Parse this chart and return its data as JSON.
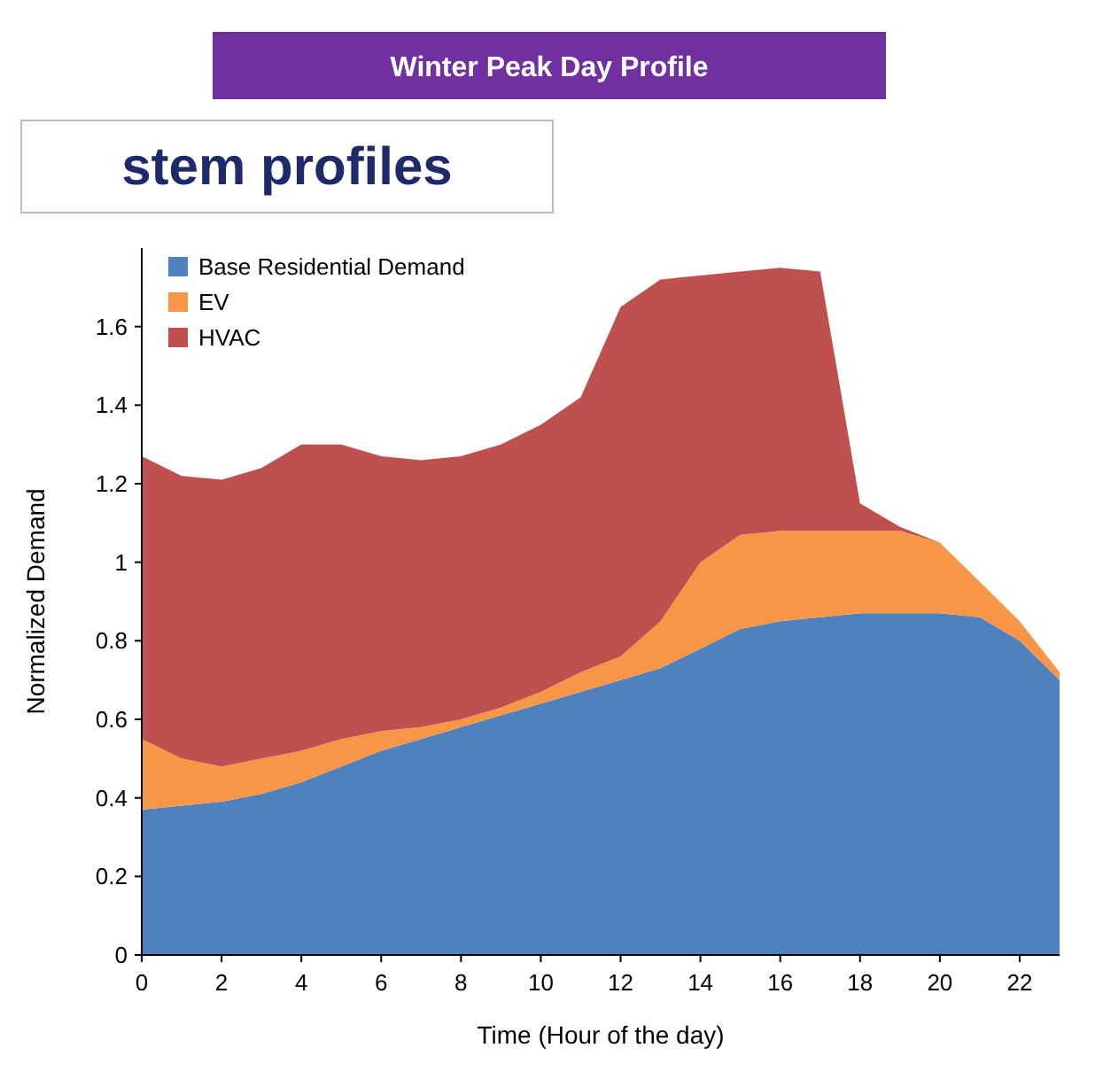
{
  "chart_data": {
    "type": "area",
    "stacked": true,
    "title": "Winter Peak Day Profile",
    "xlabel": "Time (Hour of the day)",
    "ylabel": "Normalized Demand",
    "annotations": [
      "stem profiles"
    ],
    "x": [
      0,
      1,
      2,
      3,
      4,
      5,
      6,
      7,
      8,
      9,
      10,
      11,
      12,
      13,
      14,
      15,
      16,
      17,
      18,
      19,
      20,
      21,
      22,
      23
    ],
    "xlim": [
      0,
      23
    ],
    "xticks": [
      0,
      2,
      4,
      6,
      8,
      10,
      12,
      14,
      16,
      18,
      20,
      22
    ],
    "ylim": [
      0,
      1.8
    ],
    "yticks": [
      0,
      0.2,
      0.4,
      0.6,
      0.8,
      1,
      1.2,
      1.4,
      1.6
    ],
    "legend": "top left",
    "grid": false,
    "series": [
      {
        "name": "Base Residential Demand",
        "color": "#4f81bd",
        "values": [
          0.37,
          0.38,
          0.39,
          0.41,
          0.44,
          0.48,
          0.52,
          0.55,
          0.58,
          0.61,
          0.64,
          0.67,
          0.7,
          0.73,
          0.78,
          0.83,
          0.85,
          0.86,
          0.87,
          0.87,
          0.87,
          0.86,
          0.8,
          0.7
        ]
      },
      {
        "name": "EV",
        "color": "#f79646",
        "values": [
          0.18,
          0.12,
          0.09,
          0.09,
          0.08,
          0.07,
          0.05,
          0.03,
          0.02,
          0.02,
          0.03,
          0.05,
          0.06,
          0.12,
          0.22,
          0.24,
          0.23,
          0.22,
          0.21,
          0.21,
          0.18,
          0.09,
          0.05,
          0.02
        ]
      },
      {
        "name": "HVAC",
        "color": "#c0504d",
        "values": [
          0.72,
          0.72,
          0.73,
          0.74,
          0.78,
          0.75,
          0.7,
          0.68,
          0.67,
          0.67,
          0.68,
          0.7,
          0.89,
          0.87,
          0.73,
          0.67,
          0.67,
          0.66,
          0.07,
          0.01,
          0,
          0,
          0,
          0
        ]
      }
    ]
  }
}
